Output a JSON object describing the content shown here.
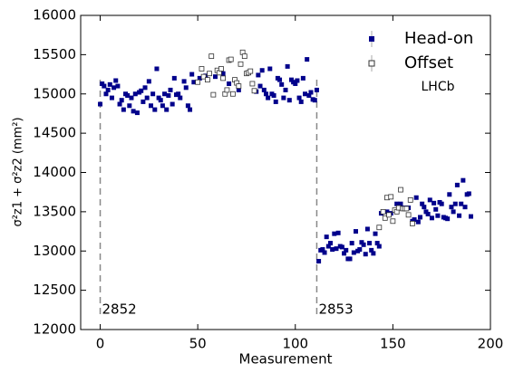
{
  "chart_data": {
    "type": "scatter",
    "xlabel": "Measurement",
    "ylabel": "σ²z1 + σ²z2 (mm²)",
    "xlim": [
      -10,
      200
    ],
    "xticks": [
      0,
      50,
      100,
      150,
      200
    ],
    "ylim": [
      12000,
      16000
    ],
    "yticks": [
      12000,
      12500,
      13000,
      13500,
      14000,
      14500,
      15000,
      15500,
      16000
    ],
    "legend": "upper right",
    "annotation": "LHCb",
    "fills": [
      {
        "x": 0,
        "label": "2852"
      },
      {
        "x": 111,
        "label": "2853"
      }
    ],
    "series": [
      {
        "name": "Head-on",
        "color": "#00008b",
        "marker": "filled",
        "x": [
          0,
          1,
          2,
          3,
          4,
          5,
          6,
          7,
          8,
          9,
          10,
          11,
          12,
          13,
          14,
          15,
          16,
          17,
          18,
          19,
          20,
          21,
          22,
          23,
          24,
          25,
          26,
          27,
          28,
          29,
          30,
          31,
          32,
          33,
          34,
          35,
          36,
          37,
          38,
          39,
          40,
          41,
          43,
          44,
          45,
          46,
          47,
          48,
          51,
          54,
          59,
          63,
          66,
          71,
          80,
          81,
          82,
          83,
          84,
          85,
          86,
          87,
          88,
          89,
          90,
          91,
          92,
          93,
          94,
          95,
          96,
          97,
          98,
          99,
          100,
          101,
          102,
          103,
          104,
          105,
          106,
          107,
          108,
          109,
          110,
          111,
          112,
          113,
          114,
          115,
          116,
          117,
          118,
          119,
          120,
          121,
          122,
          123,
          124,
          125,
          126,
          127,
          128,
          129,
          130,
          131,
          132,
          133,
          134,
          135,
          136,
          137,
          138,
          139,
          140,
          141,
          142,
          143,
          144,
          147,
          149,
          152,
          154,
          156,
          158,
          160,
          161,
          162,
          163,
          164,
          165,
          166,
          167,
          168,
          169,
          170,
          171,
          172,
          173,
          174,
          175,
          176,
          177,
          178,
          179,
          180,
          181,
          182,
          183,
          184,
          185,
          186,
          187,
          188,
          189,
          190
        ],
        "values": [
          14870,
          15130,
          15100,
          15000,
          15050,
          15120,
          14950,
          15080,
          15170,
          15100,
          14870,
          14920,
          14800,
          15000,
          14980,
          14850,
          14950,
          14780,
          15000,
          14760,
          15020,
          15040,
          14900,
          15080,
          14950,
          15160,
          14850,
          15000,
          14800,
          15320,
          14950,
          14920,
          14850,
          15000,
          14800,
          14980,
          15050,
          14870,
          15200,
          14990,
          15000,
          14950,
          15160,
          15080,
          14850,
          14800,
          15250,
          15150,
          15200,
          15230,
          15220,
          15260,
          15130,
          15050,
          15030,
          15240,
          15100,
          15300,
          15050,
          15000,
          14950,
          15320,
          15000,
          14980,
          14900,
          15200,
          15180,
          15120,
          14950,
          15050,
          15350,
          14920,
          15180,
          15150,
          15130,
          15170,
          14950,
          14900,
          15200,
          15000,
          15440,
          14980,
          15020,
          14930,
          14920,
          15050,
          12870,
          13010,
          13020,
          12980,
          13180,
          13060,
          13100,
          13020,
          13220,
          13030,
          13230,
          13060,
          13050,
          12970,
          13010,
          12900,
          12900,
          13100,
          12980,
          13250,
          13000,
          13020,
          13110,
          13080,
          12960,
          13280,
          13100,
          13010,
          12970,
          13220,
          13100,
          13060,
          13480,
          13500,
          13480,
          13600,
          13600,
          13550,
          13550,
          13380,
          13400,
          13680,
          13370,
          13430,
          13600,
          13560,
          13500,
          13470,
          13650,
          13420,
          13610,
          13530,
          13450,
          13620,
          13600,
          13430,
          13420,
          13410,
          13720,
          13560,
          13500,
          13600,
          13840,
          13450,
          13600,
          13900,
          13560,
          13720,
          13730,
          13440
        ]
      },
      {
        "name": "Offset",
        "color": "#333333",
        "marker": "open",
        "x": [
          50,
          52,
          53,
          55,
          56,
          57,
          58,
          60,
          61,
          62,
          63,
          64,
          65,
          66,
          67,
          68,
          69,
          70,
          71,
          72,
          73,
          74,
          75,
          76,
          77,
          78,
          79,
          143,
          145,
          146,
          147,
          148,
          149,
          150,
          151,
          152,
          153,
          154,
          155,
          156,
          157,
          158,
          159,
          160
        ],
        "values": [
          15150,
          15320,
          15220,
          15180,
          15260,
          15480,
          14990,
          15300,
          15270,
          15320,
          15200,
          15000,
          15050,
          15430,
          15440,
          15000,
          15180,
          15140,
          15100,
          15380,
          15530,
          15480,
          15260,
          15270,
          15290,
          15130,
          15040,
          13300,
          13500,
          13420,
          13680,
          13460,
          13690,
          13380,
          13520,
          13500,
          13550,
          13780,
          13540,
          13540,
          13540,
          13460,
          13650,
          13350
        ]
      }
    ]
  }
}
